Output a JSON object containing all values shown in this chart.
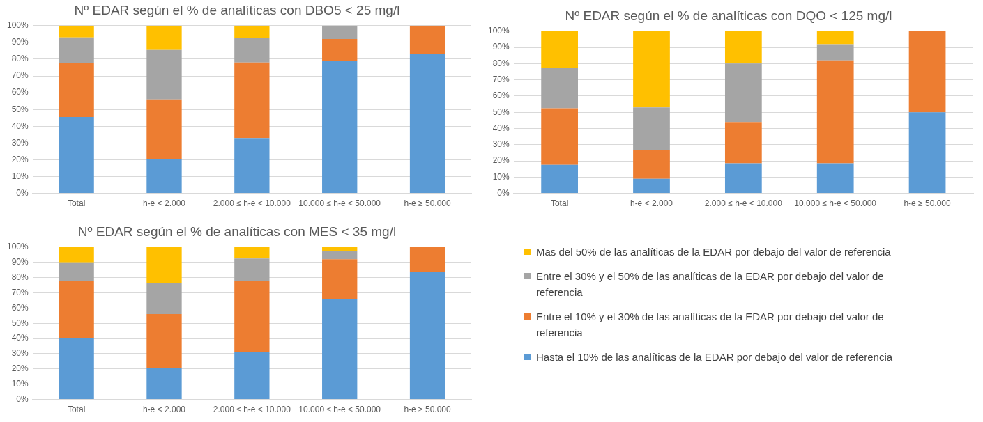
{
  "chart_data": [
    {
      "type": "bar",
      "title": "Nº EDAR según el % de analíticas con DBO5 < 25 mg/l",
      "stacked": true,
      "grid": "y",
      "legend": false,
      "categories": [
        "Total",
        "h-e < 2.000",
        "2.000 ≤ h-e < 10.000",
        "10.000 ≤ h-e < 50.000",
        "h-e ≥ 50.000"
      ],
      "ylim": [
        0,
        100
      ],
      "yticks": [
        {
          "value": 0,
          "label": "0%"
        },
        {
          "value": 10,
          "label": "10%"
        },
        {
          "value": 20,
          "label": "20%"
        },
        {
          "value": 30,
          "label": "30%"
        },
        {
          "value": 40,
          "label": "40%"
        },
        {
          "value": 50,
          "label": "50%"
        },
        {
          "value": 60,
          "label": "60%"
        },
        {
          "value": 70,
          "label": "70%"
        },
        {
          "value": 80,
          "label": "80%"
        },
        {
          "value": 90,
          "label": "90%"
        },
        {
          "value": 100,
          "label": "100%"
        }
      ],
      "series": [
        {
          "color": "#5b9bd5",
          "values": [
            45.5,
            20.5,
            33,
            79,
            83
          ]
        },
        {
          "color": "#ed7d31",
          "values": [
            32,
            35.5,
            45,
            13,
            17
          ]
        },
        {
          "color": "#a5a5a5",
          "values": [
            15.5,
            29.5,
            14.5,
            8,
            0
          ]
        },
        {
          "color": "#ffc000",
          "values": [
            7,
            14.5,
            7.5,
            0,
            0
          ]
        }
      ]
    },
    {
      "type": "bar",
      "title": "Nº EDAR según el % de analíticas con DQO < 125 mg/l",
      "stacked": true,
      "grid": "y",
      "legend": false,
      "categories": [
        "Total",
        "h-e < 2.000",
        "2.000 ≤ h-e < 10.000",
        "10.000 ≤ h-e < 50.000",
        "h-e ≥ 50.000"
      ],
      "ylim": [
        0,
        100
      ],
      "yticks": [
        {
          "value": 0,
          "label": "0%"
        },
        {
          "value": 10,
          "label": "10%"
        },
        {
          "value": 20,
          "label": "20%"
        },
        {
          "value": 30,
          "label": "30%"
        },
        {
          "value": 40,
          "label": "40%"
        },
        {
          "value": 50,
          "label": "50%"
        },
        {
          "value": 60,
          "label": "60%"
        },
        {
          "value": 70,
          "label": "70%"
        },
        {
          "value": 80,
          "label": "80%"
        },
        {
          "value": 90,
          "label": "90%"
        },
        {
          "value": 100,
          "label": "100%"
        }
      ],
      "series": [
        {
          "color": "#5b9bd5",
          "values": [
            17.5,
            9,
            18.5,
            18.5,
            50
          ]
        },
        {
          "color": "#ed7d31",
          "values": [
            35,
            17.5,
            25.5,
            63.5,
            50
          ]
        },
        {
          "color": "#a5a5a5",
          "values": [
            25,
            26.5,
            36,
            10,
            0
          ]
        },
        {
          "color": "#ffc000",
          "values": [
            22.5,
            47,
            20,
            8,
            0
          ]
        }
      ]
    },
    {
      "type": "bar",
      "title": "Nº EDAR según el % de analíticas con MES < 35 mg/l",
      "stacked": true,
      "grid": "y",
      "legend": "right",
      "categories": [
        "Total",
        "h-e < 2.000",
        "2.000 ≤ h-e < 10.000",
        "10.000 ≤ h-e < 50.000",
        "h-e ≥ 50.000"
      ],
      "ylim": [
        0,
        100
      ],
      "yticks": [
        {
          "value": 0,
          "label": "0%"
        },
        {
          "value": 10,
          "label": "10%"
        },
        {
          "value": 20,
          "label": "20%"
        },
        {
          "value": 30,
          "label": "30%"
        },
        {
          "value": 40,
          "label": "40%"
        },
        {
          "value": 50,
          "label": "50%"
        },
        {
          "value": 60,
          "label": "60%"
        },
        {
          "value": 70,
          "label": "70%"
        },
        {
          "value": 80,
          "label": "80%"
        },
        {
          "value": 90,
          "label": "90%"
        },
        {
          "value": 100,
          "label": "100%"
        }
      ],
      "series": [
        {
          "name": "Hasta el 10% de las analíticas de la EDAR por debajo del valor de referencia",
          "color": "#5b9bd5",
          "values": [
            40.5,
            20.5,
            31,
            66,
            83.5
          ]
        },
        {
          "name": "Entre el 10% y el 30% de las analíticas de la EDAR por debajo del valor de referencia",
          "color": "#ed7d31",
          "values": [
            37,
            35.5,
            47,
            26,
            16.5
          ]
        },
        {
          "name": "Entre el 30% y el 50% de las analíticas de la EDAR por debajo del valor de referencia",
          "color": "#a5a5a5",
          "values": [
            12.5,
            20.5,
            14.5,
            5.5,
            0
          ]
        },
        {
          "name": "Mas del 50% de las analíticas de la EDAR por debajo del valor de referencia",
          "color": "#ffc000",
          "values": [
            10,
            23.5,
            7.5,
            2.5,
            0
          ]
        }
      ]
    }
  ]
}
